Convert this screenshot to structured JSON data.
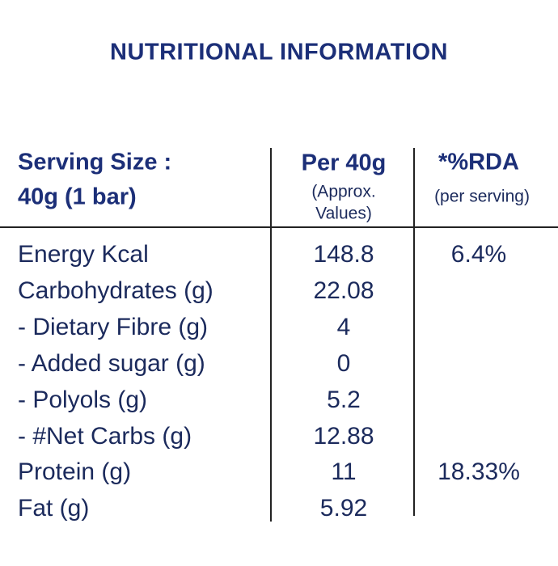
{
  "title": "NUTRITIONAL INFORMATION",
  "header": {
    "serving_size": "Serving Size :",
    "serving_amount": "40g (1 bar)",
    "per_col": "Per 40g",
    "per_col_note_1": "(Approx.",
    "per_col_note_2": "Values)",
    "rda_col": "*%RDA",
    "rda_col_note": "(per serving)"
  },
  "rows": [
    {
      "label": "Energy Kcal",
      "value": "148.8",
      "rda": "6.4%"
    },
    {
      "label": "Carbohydrates (g)",
      "value": "22.08"
    },
    {
      "label": "- Dietary Fibre (g)",
      "value": "4"
    },
    {
      "label": "- Added sugar (g)",
      "value": "0"
    },
    {
      "label": "- Polyols (g)",
      "value": "5.2"
    },
    {
      "label": "- #Net Carbs (g)",
      "value": "12.88"
    },
    {
      "label": "Protein (g)",
      "value": "11",
      "rda": "18.33%"
    },
    {
      "label": "Fat (g)",
      "value": "5.92"
    }
  ]
}
